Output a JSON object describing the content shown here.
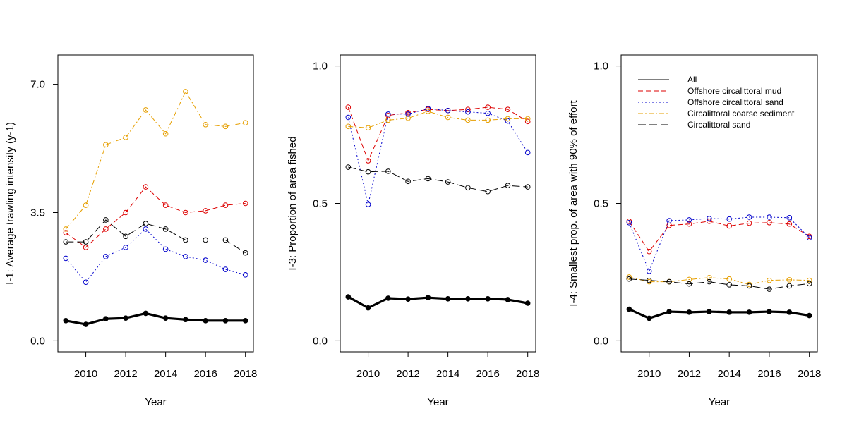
{
  "chart_data": [
    {
      "type": "line",
      "panel": "I-1",
      "xlabel": "Year",
      "ylabel": "I-1: Average trawling intensity (y-1)",
      "x": [
        2009,
        2010,
        2011,
        2012,
        2013,
        2014,
        2015,
        2016,
        2017,
        2018
      ],
      "xlim": [
        2008.6,
        2018.4
      ],
      "ylim": [
        -0.3,
        7.8
      ],
      "xticks": [
        "2010",
        "2012",
        "2014",
        "2016",
        "2018"
      ],
      "yticks": [
        "0.0",
        "3.5",
        "7.0"
      ],
      "series": [
        {
          "name": "All",
          "color": "#000000",
          "style": "solid-bold",
          "marker": "filled",
          "values": [
            0.55,
            0.45,
            0.6,
            0.62,
            0.75,
            0.62,
            0.58,
            0.55,
            0.55,
            0.55
          ]
        },
        {
          "name": "Offshore circalittoral mud",
          "color": "#dd0000",
          "style": "dashed",
          "marker": "open",
          "values": [
            2.95,
            2.55,
            3.05,
            3.5,
            4.2,
            3.7,
            3.5,
            3.55,
            3.7,
            3.75
          ]
        },
        {
          "name": "Offshore circalittoral sand",
          "color": "#0000cc",
          "style": "dotted",
          "marker": "open",
          "values": [
            2.25,
            1.6,
            2.3,
            2.55,
            3.05,
            2.5,
            2.3,
            2.2,
            1.95,
            1.8
          ]
        },
        {
          "name": "Circalittoral coarse sediment",
          "color": "#e69f00",
          "style": "dashdot",
          "marker": "open",
          "values": [
            3.05,
            3.7,
            5.35,
            5.55,
            6.3,
            5.65,
            6.8,
            5.9,
            5.85,
            5.95
          ]
        },
        {
          "name": "Circalittoral sand",
          "color": "#000000",
          "style": "longdash",
          "marker": "open",
          "values": [
            2.7,
            2.7,
            3.3,
            2.85,
            3.2,
            3.05,
            2.75,
            2.75,
            2.75,
            2.4
          ]
        }
      ]
    },
    {
      "type": "line",
      "panel": "I-3",
      "xlabel": "Year",
      "ylabel": "I-3: Proportion of area fished",
      "x": [
        2009,
        2010,
        2011,
        2012,
        2013,
        2014,
        2015,
        2016,
        2017,
        2018
      ],
      "xlim": [
        2008.6,
        2018.4
      ],
      "ylim": [
        -0.04,
        1.04
      ],
      "xticks": [
        "2010",
        "2012",
        "2014",
        "2016",
        "2018"
      ],
      "yticks": [
        "0.0",
        "0.5",
        "1.0"
      ],
      "series": [
        {
          "name": "All",
          "color": "#000000",
          "style": "solid-bold",
          "marker": "filled",
          "values": [
            0.16,
            0.12,
            0.155,
            0.152,
            0.157,
            0.153,
            0.153,
            0.153,
            0.15,
            0.137
          ]
        },
        {
          "name": "Offshore circalittoral mud",
          "color": "#dd0000",
          "style": "dashed",
          "marker": "open",
          "values": [
            0.85,
            0.655,
            0.82,
            0.83,
            0.842,
            0.838,
            0.842,
            0.85,
            0.842,
            0.798
          ]
        },
        {
          "name": "Offshore circalittoral sand",
          "color": "#0000cc",
          "style": "dotted",
          "marker": "open",
          "values": [
            0.813,
            0.496,
            0.825,
            0.825,
            0.845,
            0.838,
            0.833,
            0.828,
            0.8,
            0.685
          ]
        },
        {
          "name": "Circalittoral coarse sediment",
          "color": "#e69f00",
          "style": "dashdot",
          "marker": "open",
          "values": [
            0.78,
            0.775,
            0.803,
            0.81,
            0.835,
            0.813,
            0.803,
            0.803,
            0.808,
            0.808
          ]
        },
        {
          "name": "Circalittoral sand",
          "color": "#000000",
          "style": "longdash",
          "marker": "open",
          "values": [
            0.632,
            0.615,
            0.617,
            0.58,
            0.59,
            0.578,
            0.557,
            0.543,
            0.565,
            0.56
          ]
        }
      ]
    },
    {
      "type": "line",
      "panel": "I-4",
      "xlabel": "Year",
      "ylabel": "I-4: Smallest  prop. of area with 90% of effort",
      "x": [
        2009,
        2010,
        2011,
        2012,
        2013,
        2014,
        2015,
        2016,
        2017,
        2018
      ],
      "xlim": [
        2008.6,
        2018.4
      ],
      "ylim": [
        -0.04,
        1.04
      ],
      "xticks": [
        "2010",
        "2012",
        "2014",
        "2016",
        "2018"
      ],
      "yticks": [
        "0.0",
        "0.5",
        "1.0"
      ],
      "legend": "top-left",
      "series": [
        {
          "name": "All",
          "color": "#000000",
          "style": "solid-bold",
          "marker": "filled",
          "values": [
            0.115,
            0.082,
            0.106,
            0.104,
            0.106,
            0.104,
            0.104,
            0.106,
            0.104,
            0.092
          ]
        },
        {
          "name": "Offshore circalittoral mud",
          "color": "#dd0000",
          "style": "dashed",
          "marker": "open",
          "values": [
            0.435,
            0.325,
            0.42,
            0.425,
            0.435,
            0.418,
            0.428,
            0.43,
            0.425,
            0.38
          ]
        },
        {
          "name": "Offshore circalittoral sand",
          "color": "#0000cc",
          "style": "dotted",
          "marker": "open",
          "values": [
            0.43,
            0.253,
            0.437,
            0.44,
            0.445,
            0.443,
            0.45,
            0.45,
            0.448,
            0.375
          ]
        },
        {
          "name": "Circalittoral coarse sediment",
          "color": "#e69f00",
          "style": "dashdot",
          "marker": "open",
          "values": [
            0.232,
            0.215,
            0.215,
            0.223,
            0.23,
            0.225,
            0.205,
            0.22,
            0.222,
            0.22
          ]
        },
        {
          "name": "Circalittoral sand",
          "color": "#000000",
          "style": "longdash",
          "marker": "open",
          "values": [
            0.225,
            0.22,
            0.215,
            0.207,
            0.215,
            0.204,
            0.2,
            0.188,
            0.2,
            0.208
          ]
        }
      ]
    }
  ]
}
